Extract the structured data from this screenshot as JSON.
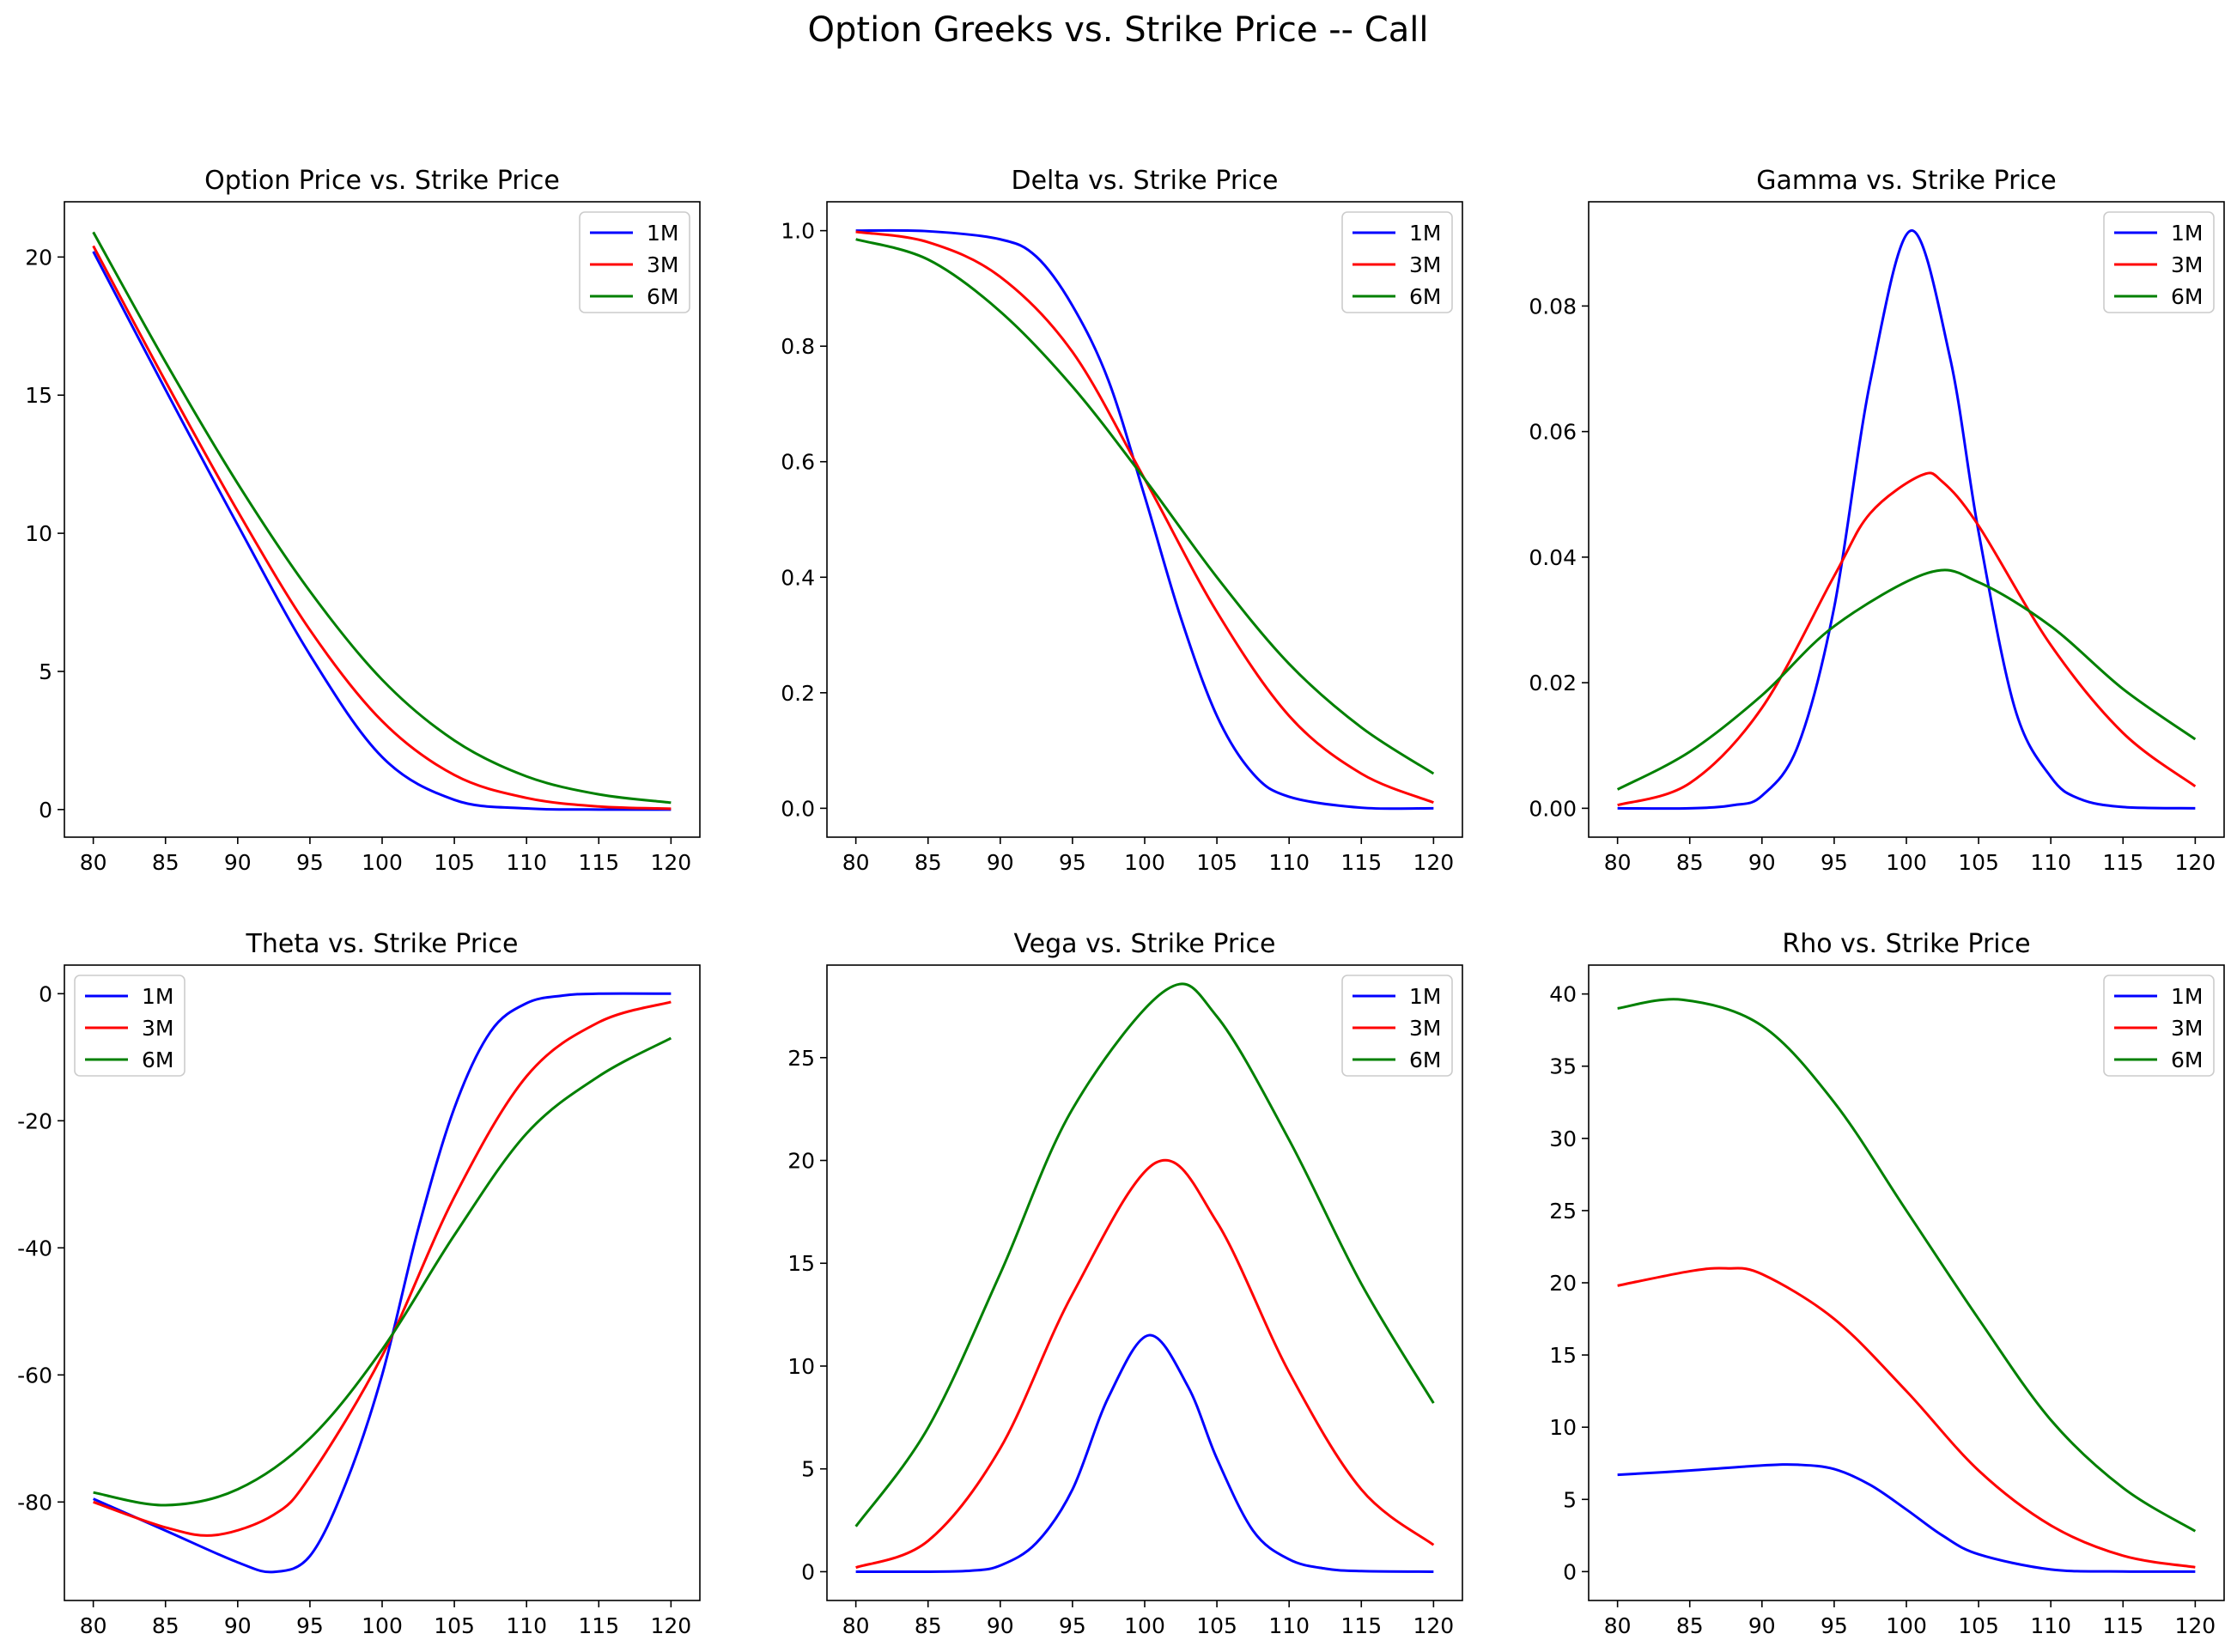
{
  "figure": {
    "suptitle": "Option Greeks vs. Strike Price -- Call"
  },
  "chart_data": [
    {
      "type": "line",
      "title": "Option Price vs. Strike Price",
      "xlabel": "",
      "ylabel": "",
      "xlim": [
        78,
        122
      ],
      "ylim": [
        -1,
        22
      ],
      "xticks": [
        80,
        85,
        90,
        95,
        100,
        105,
        110,
        115,
        120
      ],
      "yticks": [
        0,
        5,
        10,
        15,
        20
      ],
      "ytick_labels": [
        "0",
        "5",
        "10",
        "15",
        "20"
      ],
      "legend": "upper right",
      "series": [
        {
          "name": "1M",
          "color": "#0000ff",
          "x": [
            80,
            85,
            90,
            95,
            100,
            105,
            110,
            115,
            120
          ],
          "y": [
            20.2,
            15.2,
            10.3,
            5.6,
            1.9,
            0.35,
            0.04,
            0.0,
            0.0
          ]
        },
        {
          "name": "3M",
          "color": "#ff0000",
          "x": [
            80,
            85,
            90,
            95,
            100,
            105,
            110,
            115,
            120
          ],
          "y": [
            20.4,
            15.5,
            10.8,
            6.5,
            3.2,
            1.25,
            0.42,
            0.11,
            0.03
          ]
        },
        {
          "name": "6M",
          "color": "#008000",
          "x": [
            80,
            85,
            90,
            95,
            100,
            105,
            110,
            115,
            120
          ],
          "y": [
            20.9,
            16.2,
            11.8,
            7.9,
            4.7,
            2.5,
            1.2,
            0.55,
            0.25
          ]
        }
      ]
    },
    {
      "type": "line",
      "title": "Delta vs. Strike Price",
      "xlabel": "",
      "ylabel": "",
      "xlim": [
        78,
        122
      ],
      "ylim": [
        -0.05,
        1.05
      ],
      "xticks": [
        80,
        85,
        90,
        95,
        100,
        105,
        110,
        115,
        120
      ],
      "yticks": [
        0,
        0.2,
        0.4,
        0.6,
        0.8,
        1.0
      ],
      "ytick_labels": [
        "0.0",
        "0.2",
        "0.4",
        "0.6",
        "0.8",
        "1.0"
      ],
      "legend": "upper right",
      "series": [
        {
          "name": "1M",
          "color": "#0000ff",
          "x": [
            80,
            85,
            90,
            92.5,
            95,
            97.5,
            100,
            102.5,
            105,
            107.5,
            110,
            115,
            120
          ],
          "y": [
            1.0,
            0.999,
            0.985,
            0.955,
            0.87,
            0.74,
            0.54,
            0.33,
            0.16,
            0.06,
            0.02,
            0.001,
            0.0
          ]
        },
        {
          "name": "3M",
          "color": "#ff0000",
          "x": [
            80,
            85,
            90,
            95,
            100,
            105,
            110,
            115,
            120
          ],
          "y": [
            0.998,
            0.98,
            0.92,
            0.79,
            0.57,
            0.34,
            0.16,
            0.06,
            0.01
          ]
        },
        {
          "name": "6M",
          "color": "#008000",
          "x": [
            80,
            85,
            90,
            95,
            100,
            105,
            110,
            115,
            120
          ],
          "y": [
            0.985,
            0.95,
            0.86,
            0.73,
            0.57,
            0.4,
            0.25,
            0.14,
            0.06
          ]
        }
      ]
    },
    {
      "type": "line",
      "title": "Gamma vs. Strike Price",
      "xlabel": "",
      "ylabel": "",
      "xlim": [
        78,
        122
      ],
      "ylim": [
        -0.0046,
        0.0966
      ],
      "xticks": [
        80,
        85,
        90,
        95,
        100,
        105,
        110,
        115,
        120
      ],
      "yticks": [
        0,
        0.02,
        0.04,
        0.06,
        0.08
      ],
      "ytick_labels": [
        "0.00",
        "0.02",
        "0.04",
        "0.06",
        "0.08"
      ],
      "legend": "upper right",
      "series": [
        {
          "name": "1M",
          "color": "#0000ff",
          "x": [
            80,
            85,
            88,
            90,
            92.5,
            95,
            97.5,
            100.3,
            103,
            105,
            107.5,
            110,
            112,
            115,
            120
          ],
          "y": [
            0.0,
            0.0,
            0.0005,
            0.002,
            0.01,
            0.032,
            0.068,
            0.092,
            0.072,
            0.044,
            0.016,
            0.005,
            0.0015,
            0.0002,
            0.0
          ]
        },
        {
          "name": "3M",
          "color": "#ff0000",
          "x": [
            80,
            85,
            90,
            95,
            97.5,
            101,
            102.5,
            105,
            110,
            115,
            120
          ],
          "y": [
            0.0005,
            0.004,
            0.016,
            0.037,
            0.047,
            0.053,
            0.052,
            0.045,
            0.026,
            0.012,
            0.0035
          ]
        },
        {
          "name": "6M",
          "color": "#008000",
          "x": [
            80,
            85,
            90,
            95,
            101.5,
            105,
            110,
            115,
            120
          ],
          "y": [
            0.003,
            0.009,
            0.018,
            0.029,
            0.0375,
            0.036,
            0.029,
            0.019,
            0.011
          ]
        }
      ]
    },
    {
      "type": "line",
      "title": "Theta vs. Strike Price",
      "xlabel": "",
      "ylabel": "",
      "xlim": [
        78,
        122
      ],
      "ylim": [
        -95.5,
        4.5
      ],
      "xticks": [
        80,
        85,
        90,
        95,
        100,
        105,
        110,
        115,
        120
      ],
      "yticks": [
        0,
        -20,
        -40,
        -60,
        -80
      ],
      "ytick_labels": [
        "0",
        "-20",
        "-40",
        "-60",
        "-80"
      ],
      "legend": "upper left",
      "series": [
        {
          "name": "1M",
          "color": "#0000ff",
          "x": [
            80,
            85,
            90,
            92.5,
            95,
            97.5,
            100,
            102.5,
            105,
            107.5,
            110,
            112.5,
            115,
            120
          ],
          "y": [
            -79.5,
            -84.5,
            -89.5,
            -91.0,
            -88.5,
            -77,
            -60,
            -37,
            -18,
            -6,
            -1.5,
            -0.3,
            0,
            0
          ]
        },
        {
          "name": "3M",
          "color": "#ff0000",
          "x": [
            80,
            85,
            88.5,
            92.5,
            95,
            100,
            105,
            110,
            115,
            120
          ],
          "y": [
            -80,
            -84,
            -85.2,
            -82,
            -76,
            -57,
            -32,
            -13,
            -4.5,
            -1.3
          ]
        },
        {
          "name": "6M",
          "color": "#008000",
          "x": [
            80,
            85,
            90,
            95,
            100,
            105,
            110,
            115,
            120
          ],
          "y": [
            -78.5,
            -80.5,
            -78,
            -70,
            -56,
            -38,
            -22,
            -13,
            -7
          ]
        }
      ]
    },
    {
      "type": "line",
      "title": "Vega vs. Strike Price",
      "xlabel": "",
      "ylabel": "",
      "xlim": [
        78,
        122
      ],
      "ylim": [
        -1.4,
        29.5
      ],
      "xticks": [
        80,
        85,
        90,
        95,
        100,
        105,
        110,
        115,
        120
      ],
      "yticks": [
        0,
        5,
        10,
        15,
        20,
        25
      ],
      "ytick_labels": [
        "0",
        "5",
        "10",
        "15",
        "20",
        "25"
      ],
      "legend": "upper right",
      "series": [
        {
          "name": "1M",
          "color": "#0000ff",
          "x": [
            80,
            85,
            88,
            90,
            92.5,
            95,
            97.5,
            100.3,
            103,
            105,
            107.5,
            110,
            112.5,
            115,
            120
          ],
          "y": [
            0.0,
            0.0,
            0.05,
            0.3,
            1.4,
            4.0,
            8.5,
            11.5,
            9.0,
            5.5,
            2.0,
            0.6,
            0.15,
            0.03,
            0.0
          ]
        },
        {
          "name": "3M",
          "color": "#ff0000",
          "x": [
            80,
            85,
            90,
            95,
            100.8,
            105,
            110,
            115,
            120
          ],
          "y": [
            0.2,
            1.5,
            6.0,
            13.5,
            19.9,
            17.0,
            9.7,
            4.0,
            1.3
          ]
        },
        {
          "name": "6M",
          "color": "#008000",
          "x": [
            80,
            85,
            90,
            95,
            101.5,
            105,
            110,
            115,
            120
          ],
          "y": [
            2.2,
            7.0,
            14.5,
            22.5,
            28.3,
            27.0,
            21.0,
            14.0,
            8.2
          ]
        }
      ]
    },
    {
      "type": "line",
      "title": "Rho vs. Strike Price",
      "xlabel": "",
      "ylabel": "",
      "xlim": [
        78,
        122
      ],
      "ylim": [
        -2,
        42
      ],
      "xticks": [
        80,
        85,
        90,
        95,
        100,
        105,
        110,
        115,
        120
      ],
      "yticks": [
        0,
        5,
        10,
        15,
        20,
        25,
        30,
        35,
        40
      ],
      "ytick_labels": [
        "0",
        "5",
        "10",
        "15",
        "20",
        "25",
        "30",
        "35",
        "40"
      ],
      "legend": "upper right",
      "series": [
        {
          "name": "1M",
          "color": "#0000ff",
          "x": [
            80,
            85,
            90,
            92.5,
            95,
            97.5,
            100,
            102.5,
            105,
            110,
            115,
            120
          ],
          "y": [
            6.7,
            7.0,
            7.35,
            7.4,
            7.1,
            6.0,
            4.3,
            2.5,
            1.2,
            0.15,
            0.01,
            0.0
          ]
        },
        {
          "name": "3M",
          "color": "#ff0000",
          "x": [
            80,
            85,
            87.5,
            90,
            95,
            100,
            105,
            110,
            115,
            120
          ],
          "y": [
            19.8,
            20.8,
            21.0,
            20.6,
            17.5,
            12.5,
            7.0,
            3.2,
            1.1,
            0.3
          ]
        },
        {
          "name": "6M",
          "color": "#008000",
          "x": [
            80,
            84.5,
            90,
            95,
            100,
            105,
            110,
            115,
            120
          ],
          "y": [
            39.0,
            39.6,
            37.8,
            32.5,
            25.0,
            17.5,
            10.5,
            5.8,
            2.8
          ]
        }
      ]
    }
  ]
}
